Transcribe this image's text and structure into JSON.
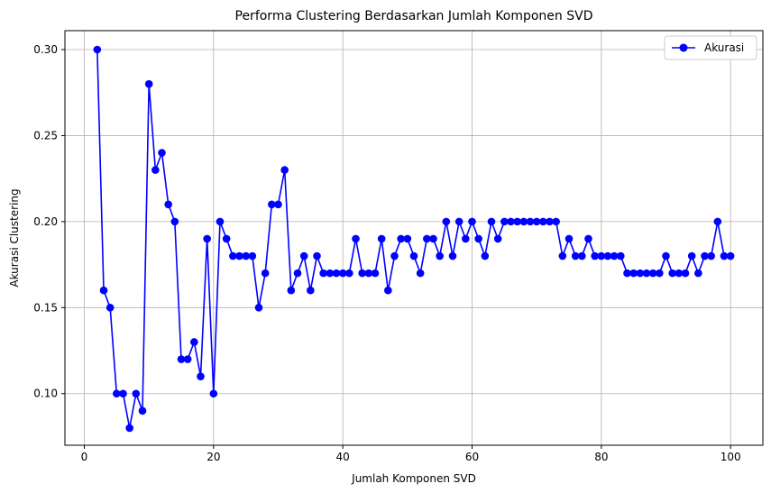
{
  "chart_data": {
    "type": "line",
    "title": "Performa Clustering Berdasarkan Jumlah Komponen SVD",
    "xlabel": "Jumlah Komponen SVD",
    "ylabel": "Akurasi Clustering",
    "xlim": [
      -3,
      105
    ],
    "ylim": [
      0.07,
      0.311
    ],
    "xticks": [
      0,
      20,
      40,
      60,
      80,
      100
    ],
    "yticks": [
      0.1,
      0.15,
      0.2,
      0.25,
      0.3
    ],
    "xtick_labels": [
      "0",
      "20",
      "40",
      "60",
      "80",
      "100"
    ],
    "ytick_labels": [
      "0.10",
      "0.15",
      "0.20",
      "0.25",
      "0.30"
    ],
    "grid": true,
    "legend_position": "top-right",
    "color": "#0000ff",
    "series": [
      {
        "name": "Akurasi",
        "x": [
          2,
          3,
          4,
          5,
          6,
          7,
          8,
          9,
          10,
          11,
          12,
          13,
          14,
          15,
          16,
          17,
          18,
          19,
          20,
          21,
          22,
          23,
          24,
          25,
          26,
          27,
          28,
          29,
          30,
          31,
          32,
          33,
          34,
          35,
          36,
          37,
          38,
          39,
          40,
          41,
          42,
          43,
          44,
          45,
          46,
          47,
          48,
          49,
          50,
          51,
          52,
          53,
          54,
          55,
          56,
          57,
          58,
          59,
          60,
          61,
          62,
          63,
          64,
          65,
          66,
          67,
          68,
          69,
          70,
          71,
          72,
          73,
          74,
          75,
          76,
          77,
          78,
          79,
          80,
          81,
          82,
          83,
          84,
          85,
          86,
          87,
          88,
          89,
          90,
          91,
          92,
          93,
          94,
          95,
          96,
          97,
          98,
          99,
          100
        ],
        "y": [
          0.3,
          0.16,
          0.15,
          0.1,
          0.1,
          0.08,
          0.1,
          0.09,
          0.28,
          0.23,
          0.24,
          0.21,
          0.2,
          0.12,
          0.12,
          0.13,
          0.11,
          0.19,
          0.1,
          0.2,
          0.19,
          0.18,
          0.18,
          0.18,
          0.18,
          0.15,
          0.17,
          0.21,
          0.21,
          0.23,
          0.16,
          0.17,
          0.18,
          0.16,
          0.18,
          0.17,
          0.17,
          0.17,
          0.17,
          0.17,
          0.19,
          0.17,
          0.17,
          0.17,
          0.19,
          0.16,
          0.18,
          0.19,
          0.19,
          0.18,
          0.17,
          0.19,
          0.19,
          0.18,
          0.2,
          0.18,
          0.2,
          0.19,
          0.2,
          0.19,
          0.18,
          0.2,
          0.19,
          0.2,
          0.2,
          0.2,
          0.2,
          0.2,
          0.2,
          0.2,
          0.2,
          0.2,
          0.18,
          0.19,
          0.18,
          0.18,
          0.19,
          0.18,
          0.18,
          0.18,
          0.18,
          0.18,
          0.17,
          0.17,
          0.17,
          0.17,
          0.17,
          0.17,
          0.18,
          0.17,
          0.17,
          0.17,
          0.18,
          0.17,
          0.18,
          0.18,
          0.2,
          0.18,
          0.18
        ]
      }
    ]
  }
}
